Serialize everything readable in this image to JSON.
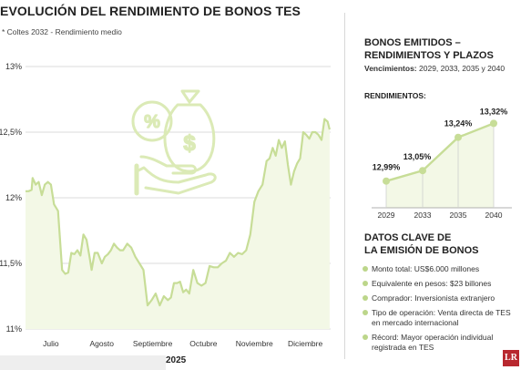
{
  "title": "EVOLUCIÓN DEL RENDIMIENTO DE BONOS TES",
  "subtitle": "* Coltes 2032 - Rendimiento medio",
  "year": "2025",
  "logo": "LR",
  "colors": {
    "line": "#c7dd97",
    "area": "#f3f8e6",
    "icon": "#dbeab6",
    "grid": "#cfcfcf",
    "accent_point": "#c7dd97"
  },
  "chart_data": [
    {
      "type": "area",
      "title": "EVOLUCIÓN DEL RENDIMIENTO DE BONOS TES",
      "ylim": [
        11,
        13
      ],
      "yticks": [
        11,
        11.5,
        12,
        12.5,
        13
      ],
      "ytick_labels": [
        "11%",
        "11,5%",
        "12%",
        "12,5%",
        "13%"
      ],
      "xlim": [
        0,
        6
      ],
      "xtick_positions": [
        0.5,
        1.5,
        2.5,
        3.5,
        4.5,
        5.5
      ],
      "xtick_labels": [
        "Julio",
        "Agosto",
        "Septiembre",
        "Octubre",
        "Noviembre",
        "Diciembre"
      ],
      "grid": "horizontal",
      "x": [
        0,
        0.06,
        0.12,
        0.14,
        0.2,
        0.26,
        0.32,
        0.38,
        0.44,
        0.5,
        0.56,
        0.64,
        0.72,
        0.78,
        0.84,
        0.9,
        0.96,
        1.02,
        1.08,
        1.14,
        1.2,
        1.26,
        1.3,
        1.36,
        1.42,
        1.5,
        1.56,
        1.62,
        1.68,
        1.74,
        1.8,
        1.86,
        1.92,
        2.0,
        2.08,
        2.16,
        2.24,
        2.32,
        2.4,
        2.48,
        2.56,
        2.64,
        2.72,
        2.8,
        2.86,
        2.92,
        2.98,
        3.04,
        3.1,
        3.16,
        3.22,
        3.3,
        3.38,
        3.46,
        3.54,
        3.62,
        3.7,
        3.78,
        3.86,
        3.94,
        4.02,
        4.1,
        4.18,
        4.26,
        4.34,
        4.42,
        4.5,
        4.58,
        4.66,
        4.74,
        4.8,
        4.86,
        4.92,
        4.98,
        5.04,
        5.1,
        5.16,
        5.22,
        5.28,
        5.34,
        5.4,
        5.46,
        5.52,
        5.58,
        5.64,
        5.7,
        5.76,
        5.82,
        5.88,
        5.94,
        5.98
      ],
      "values": [
        12.05,
        12.05,
        12.06,
        12.15,
        12.1,
        12.12,
        12.02,
        12.1,
        12.12,
        12.1,
        11.95,
        11.9,
        11.45,
        11.42,
        11.43,
        11.58,
        11.57,
        11.6,
        11.56,
        11.72,
        11.68,
        11.55,
        11.45,
        11.58,
        11.58,
        11.5,
        11.55,
        11.57,
        11.6,
        11.65,
        11.62,
        11.6,
        11.6,
        11.65,
        11.62,
        11.55,
        11.5,
        11.45,
        11.18,
        11.22,
        11.27,
        11.18,
        11.25,
        11.22,
        11.24,
        11.35,
        11.35,
        11.36,
        11.28,
        11.3,
        11.27,
        11.45,
        11.35,
        11.33,
        11.35,
        11.48,
        11.47,
        11.47,
        11.5,
        11.52,
        11.58,
        11.55,
        11.58,
        11.57,
        11.6,
        11.72,
        11.97,
        12.05,
        12.1,
        12.28,
        12.3,
        12.38,
        12.32,
        12.44,
        12.38,
        12.43,
        12.25,
        12.1,
        12.2,
        12.26,
        12.3,
        12.5,
        12.48,
        12.45,
        12.5,
        12.5,
        12.48,
        12.44,
        12.6,
        12.58,
        12.52
      ]
    },
    {
      "type": "line",
      "title": "BONOS EMITIDOS – RENDIMIENTOS Y PLAZOS",
      "categories": [
        "2029",
        "2033",
        "2035",
        "2040"
      ],
      "values": [
        12.99,
        13.05,
        13.24,
        13.32
      ],
      "data_labels": [
        "12,99%",
        "13,05%",
        "13,24%",
        "13,32%"
      ],
      "ylim": [
        12.9,
        13.4
      ]
    }
  ],
  "side": {
    "title_line1": "BONOS EMITIDOS –",
    "title_line2": "RENDIMIENTOS Y PLAZOS",
    "maturities_label": "Vencimientos:",
    "maturities_value": "2029, 2033, 2035 y 2040",
    "yields_label": "RENDIMIENTOS:"
  },
  "key_data": {
    "title_line1": "DATOS CLAVE DE",
    "title_line2": "LA EMISIÓN DE BONOS",
    "items": [
      {
        "label": "Monto total:",
        "value": "US$6.000 millones"
      },
      {
        "label": "Equivalente en pesos:",
        "value": "$23 billones"
      },
      {
        "label": "Comprador:",
        "value": "Inversionista extranjero"
      },
      {
        "label": "Tipo de operación:",
        "value": "Venta directa de TES en mercado internacional"
      },
      {
        "label": "Récord:",
        "value": "Mayor operación individual registrada en TES"
      }
    ]
  }
}
